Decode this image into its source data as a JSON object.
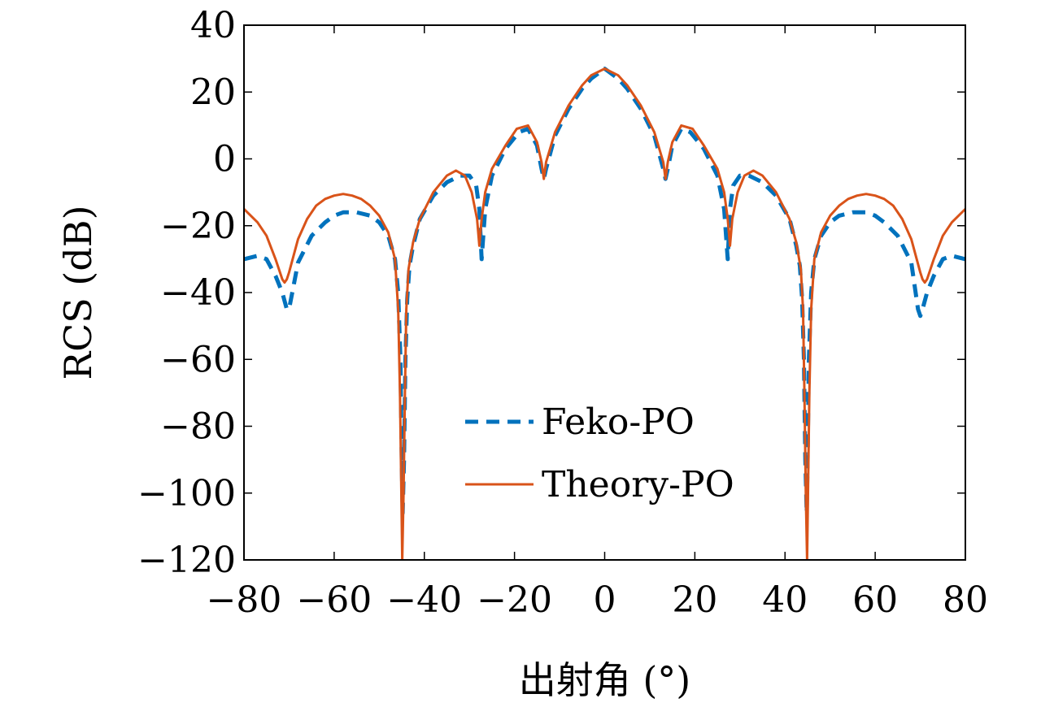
{
  "chart_data": {
    "type": "line",
    "title": "",
    "xlabel": "出射角 (°)",
    "ylabel": "RCS (dB)",
    "xlim": [
      -80,
      80
    ],
    "ylim": [
      -120,
      40
    ],
    "xticks": [
      -80,
      -60,
      -40,
      -20,
      0,
      20,
      40,
      60,
      80
    ],
    "yticks": [
      40,
      20,
      0,
      -20,
      -40,
      -60,
      -80,
      -100,
      -120
    ],
    "xtick_labels": [
      "−80",
      "−60",
      "−40",
      "−20",
      "0",
      "20",
      "40",
      "60",
      "80"
    ],
    "ytick_labels": [
      "40",
      "20",
      "0",
      "−20",
      "−40",
      "−60",
      "−80",
      "−100",
      "−120"
    ],
    "grid": false,
    "legend_position": "lower-center",
    "series": [
      {
        "name": "Feko-PO",
        "style": "dashed",
        "color": "#0072BD",
        "x": [
          -80,
          -77,
          -75,
          -73,
          -71.5,
          -70.5,
          -70,
          -68,
          -65,
          -62,
          -60,
          -58,
          -55,
          -52,
          -50,
          -48,
          -46.5,
          -45.8,
          -45.3,
          -45,
          -44.8,
          -44.5,
          -44.2,
          -43.8,
          -43.3,
          -42.5,
          -41,
          -38,
          -35,
          -32,
          -30,
          -28.5,
          -27.8,
          -27.3,
          -26.5,
          -25,
          -22,
          -19,
          -17,
          -15,
          -14,
          -13.5,
          -13,
          -11,
          -8,
          -5,
          -3,
          0,
          3,
          5,
          8,
          11,
          13,
          13.5,
          14,
          15,
          17,
          19,
          22,
          25,
          26.5,
          27.3,
          27.8,
          28.5,
          30,
          32,
          35,
          38,
          41,
          42.5,
          43.3,
          43.8,
          44.2,
          44.5,
          44.8,
          45,
          45.3,
          45.8,
          46.5,
          48,
          50,
          52,
          55,
          58,
          60,
          62,
          65,
          68,
          69.5,
          70,
          70.5,
          71.5,
          73,
          75,
          77,
          80
        ],
        "y": [
          -30,
          -29,
          -30,
          -35,
          -40,
          -45,
          -45,
          -31,
          -23,
          -19,
          -17,
          -16,
          -16,
          -17,
          -19,
          -23,
          -30,
          -40,
          -60,
          -90,
          -106,
          -90,
          -60,
          -42,
          -32,
          -26,
          -18,
          -11,
          -7,
          -5,
          -5,
          -8,
          -15,
          -30,
          -15,
          -5,
          3,
          8,
          9,
          4,
          -3,
          -6,
          -3,
          7,
          15,
          21,
          24,
          27,
          24,
          21,
          15,
          7,
          -3,
          -6,
          -3,
          4,
          9,
          8,
          3,
          -5,
          -15,
          -30,
          -15,
          -8,
          -5,
          -5,
          -7,
          -11,
          -18,
          -26,
          -32,
          -42,
          -60,
          -90,
          -106,
          -90,
          -60,
          -40,
          -30,
          -23,
          -19,
          -17,
          -16,
          -16,
          -17,
          -19,
          -23,
          -31,
          -45,
          -47,
          -45,
          -40,
          -35,
          -30,
          -29,
          -30
        ]
      },
      {
        "name": "Theory-PO",
        "style": "solid",
        "color": "#D95319",
        "x": [
          -80,
          -77,
          -75,
          -73,
          -71.5,
          -71,
          -70.5,
          -70,
          -68,
          -66,
          -64,
          -62,
          -60,
          -58,
          -56,
          -54,
          -52,
          -50,
          -48,
          -46.5,
          -45.8,
          -45.4,
          -45.1,
          -44.9,
          -44.6,
          -44.3,
          -44,
          -43.5,
          -42.5,
          -41,
          -38,
          -35,
          -33,
          -31,
          -29.5,
          -28.3,
          -27.8,
          -27.3,
          -26.5,
          -25,
          -22,
          -19.5,
          -17,
          -15,
          -14,
          -13.5,
          -13,
          -11,
          -8,
          -5,
          -3,
          0,
          3,
          5,
          8,
          11,
          13,
          13.5,
          14,
          15,
          17,
          19.5,
          22,
          25,
          26.5,
          27.3,
          27.8,
          28.3,
          29.5,
          31,
          33,
          35,
          38,
          41,
          42.5,
          43.5,
          44,
          44.3,
          44.6,
          44.9,
          45.1,
          45.4,
          45.8,
          46.5,
          48,
          50,
          52,
          54,
          56,
          58,
          60,
          62,
          64,
          66,
          68,
          70,
          70.5,
          71,
          71.5,
          73,
          75,
          77,
          80
        ],
        "y": [
          -15,
          -19,
          -23,
          -30,
          -36,
          -37,
          -36,
          -34,
          -24,
          -18,
          -14,
          -12,
          -11,
          -10.5,
          -11,
          -12,
          -14,
          -17,
          -22,
          -30,
          -45,
          -70,
          -100,
          -120,
          -100,
          -70,
          -45,
          -33,
          -25,
          -18,
          -10,
          -5,
          -3.5,
          -5,
          -10,
          -18,
          -26,
          -18,
          -10,
          -3,
          4,
          9,
          10,
          5,
          -1,
          -6,
          -1,
          8,
          16,
          22,
          25,
          27,
          25,
          22,
          16,
          8,
          -1,
          -6,
          -1,
          5,
          10,
          9,
          4,
          -3,
          -10,
          -18,
          -26,
          -18,
          -10,
          -5,
          -3.5,
          -5,
          -10,
          -18,
          -25,
          -33,
          -45,
          -70,
          -100,
          -120,
          -100,
          -70,
          -45,
          -30,
          -22,
          -17,
          -14,
          -12,
          -11,
          -10.5,
          -11,
          -12,
          -14,
          -18,
          -24,
          -34,
          -36,
          -37,
          -36,
          -30,
          -23,
          -19,
          -15
        ]
      }
    ]
  }
}
